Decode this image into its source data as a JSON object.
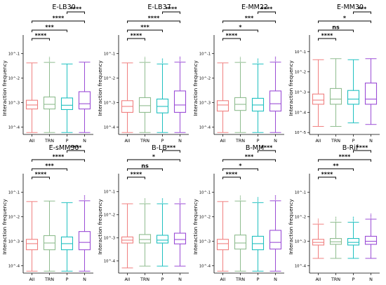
{
  "figure": {
    "groups": [
      "All",
      "TRN",
      "P",
      "N"
    ],
    "colors": [
      "#f08080",
      "#8fbc8f",
      "#20c0c0",
      "#9b4dd6"
    ]
  },
  "chart_data": [
    {
      "type": "box",
      "title": "E-LB30",
      "ylabel": "Interaction frequency",
      "yscale": "log",
      "yticks": [
        "10^-1",
        "10^-2",
        "10^-3",
        "10^-4"
      ],
      "ylim": [
        5e-05,
        0.3
      ],
      "categories": [
        "All",
        "TRN",
        "P",
        "N"
      ],
      "boxes": [
        {
          "whisker_low": 6e-05,
          "q1": 0.00055,
          "median": 0.0008,
          "q3": 0.00125,
          "whisker_high": 0.042,
          "outliers_above": false
        },
        {
          "whisker_low": 6e-05,
          "q1": 0.00055,
          "median": 0.00085,
          "q3": 0.0017,
          "whisker_high": 0.044,
          "outliers_above": true
        },
        {
          "whisker_low": 6e-05,
          "q1": 0.00052,
          "median": 0.00078,
          "q3": 0.00155,
          "whisker_high": 0.038,
          "outliers_above": false
        },
        {
          "whisker_low": 6e-05,
          "q1": 0.00055,
          "median": 0.0009,
          "q3": 0.0028,
          "whisker_high": 0.045,
          "outliers_above": false
        }
      ],
      "comparisons": [
        {
          "from": 0,
          "to": 1,
          "label": "****"
        },
        {
          "from": 0,
          "to": 2,
          "label": "***"
        },
        {
          "from": 0,
          "to": 3,
          "label": "****"
        },
        {
          "from": 2,
          "to": 3,
          "label": "****"
        }
      ]
    },
    {
      "type": "box",
      "title": "E-LB37",
      "ylabel": "Interaction frequency",
      "yscale": "log",
      "yticks": [
        "10^-1",
        "10^-2",
        "10^-3",
        "10^-4"
      ],
      "ylim": [
        5e-05,
        0.3
      ],
      "categories": [
        "All",
        "TRN",
        "P",
        "N"
      ],
      "boxes": [
        {
          "whisker_low": 6e-05,
          "q1": 0.0004,
          "median": 0.0007,
          "q3": 0.0012,
          "whisker_high": 0.042,
          "outliers_above": false
        },
        {
          "whisker_low": 6e-05,
          "q1": 0.0004,
          "median": 0.00075,
          "q3": 0.0016,
          "whisker_high": 0.044,
          "outliers_above": true
        },
        {
          "whisker_low": 6e-05,
          "q1": 0.00038,
          "median": 0.0007,
          "q3": 0.0014,
          "whisker_high": 0.038,
          "outliers_above": true
        },
        {
          "whisker_low": 6e-05,
          "q1": 0.0004,
          "median": 0.0008,
          "q3": 0.003,
          "whisker_high": 0.045,
          "outliers_above": true
        }
      ],
      "comparisons": [
        {
          "from": 0,
          "to": 1,
          "label": "****"
        },
        {
          "from": 0,
          "to": 2,
          "label": "***"
        },
        {
          "from": 0,
          "to": 3,
          "label": "****"
        },
        {
          "from": 2,
          "to": 3,
          "label": "****"
        }
      ]
    },
    {
      "type": "box",
      "title": "E-MM22",
      "ylabel": "Interaction frequency",
      "yscale": "log",
      "yticks": [
        "10^-1",
        "10^-2",
        "10^-3",
        "10^-4"
      ],
      "ylim": [
        5e-05,
        0.3
      ],
      "categories": [
        "All",
        "TRN",
        "P",
        "N"
      ],
      "boxes": [
        {
          "whisker_low": 6e-05,
          "q1": 0.00045,
          "median": 0.0008,
          "q3": 0.0012,
          "whisker_high": 0.042,
          "outliers_above": false
        },
        {
          "whisker_low": 6e-05,
          "q1": 0.00048,
          "median": 0.00085,
          "q3": 0.0016,
          "whisker_high": 0.044,
          "outliers_above": true
        },
        {
          "whisker_low": 6e-05,
          "q1": 0.00045,
          "median": 0.0008,
          "q3": 0.0015,
          "whisker_high": 0.038,
          "outliers_above": true
        },
        {
          "whisker_low": 6e-05,
          "q1": 0.00045,
          "median": 0.0009,
          "q3": 0.003,
          "whisker_high": 0.045,
          "outliers_above": true
        }
      ],
      "comparisons": [
        {
          "from": 0,
          "to": 1,
          "label": "****"
        },
        {
          "from": 0,
          "to": 2,
          "label": "*"
        },
        {
          "from": 0,
          "to": 3,
          "label": "***"
        },
        {
          "from": 2,
          "to": 3,
          "label": "****"
        }
      ]
    },
    {
      "type": "box",
      "title": "E-MM30",
      "ylabel": "Interaction frequency",
      "yscale": "log",
      "yticks": [
        "10^-1",
        "10^-2",
        "10^-3",
        "10^-4",
        "10^-5"
      ],
      "ylim": [
        8e-06,
        0.3
      ],
      "categories": [
        "All",
        "TRN",
        "P",
        "N"
      ],
      "boxes": [
        {
          "whisker_low": 2e-05,
          "q1": 0.00025,
          "median": 0.0004,
          "q3": 0.0008,
          "whisker_high": 0.04,
          "outliers_above": false
        },
        {
          "whisker_low": 2e-05,
          "q1": 0.00025,
          "median": 0.00045,
          "q3": 0.0015,
          "whisker_high": 0.045,
          "outliers_above": false
        },
        {
          "whisker_low": 3e-05,
          "q1": 0.00025,
          "median": 0.00045,
          "q3": 0.0012,
          "whisker_high": 0.04,
          "outliers_above": false
        },
        {
          "whisker_low": 2.5e-05,
          "q1": 0.00025,
          "median": 0.00045,
          "q3": 0.0028,
          "whisker_high": 0.045,
          "outliers_above": false
        }
      ],
      "comparisons": [
        {
          "from": 0,
          "to": 1,
          "label": "****"
        },
        {
          "from": 0,
          "to": 2,
          "label": "ns"
        },
        {
          "from": 0,
          "to": 3,
          "label": "*"
        },
        {
          "from": 2,
          "to": 3,
          "label": "***"
        }
      ]
    },
    {
      "type": "box",
      "title": "E-sMM30",
      "ylabel": "Interaction frequency",
      "yscale": "log",
      "yticks": [
        "10^-1",
        "10^-2",
        "10^-3",
        "10^-4"
      ],
      "ylim": [
        5e-05,
        0.3
      ],
      "categories": [
        "All",
        "TRN",
        "P",
        "N"
      ],
      "boxes": [
        {
          "whisker_low": 6e-05,
          "q1": 0.00045,
          "median": 0.0008,
          "q3": 0.0012,
          "whisker_high": 0.042,
          "outliers_above": false
        },
        {
          "whisker_low": 6e-05,
          "q1": 0.00045,
          "median": 0.00085,
          "q3": 0.0017,
          "whisker_high": 0.044,
          "outliers_above": false
        },
        {
          "whisker_low": 6e-05,
          "q1": 0.00045,
          "median": 0.0008,
          "q3": 0.0015,
          "whisker_high": 0.038,
          "outliers_above": false
        },
        {
          "whisker_low": 6e-05,
          "q1": 0.00045,
          "median": 0.0009,
          "q3": 0.0025,
          "whisker_high": 0.045,
          "outliers_above": true
        }
      ],
      "comparisons": [
        {
          "from": 0,
          "to": 1,
          "label": "****"
        },
        {
          "from": 0,
          "to": 2,
          "label": "***"
        },
        {
          "from": 0,
          "to": 3,
          "label": "****"
        },
        {
          "from": 2,
          "to": 3,
          "label": "****"
        }
      ]
    },
    {
      "type": "box",
      "title": "B-LB",
      "ylabel": "Interaction frequency",
      "yscale": "log",
      "yticks": [
        "10^-1",
        "10^-2",
        "10^-3",
        "10^-4"
      ],
      "ylim": [
        3e-05,
        0.3
      ],
      "categories": [
        "All",
        "TRN",
        "P",
        "N"
      ],
      "boxes": [
        {
          "whisker_low": 5e-05,
          "q1": 0.0006,
          "median": 0.0008,
          "q3": 0.0011,
          "whisker_high": 0.03,
          "outliers_above": false
        },
        {
          "whisker_low": 6e-05,
          "q1": 0.0006,
          "median": 0.00085,
          "q3": 0.0014,
          "whisker_high": 0.03,
          "outliers_above": true
        },
        {
          "whisker_low": 6e-05,
          "q1": 0.0006,
          "median": 0.0008,
          "q3": 0.0013,
          "whisker_high": 0.03,
          "outliers_above": true
        },
        {
          "whisker_low": 6e-05,
          "q1": 0.00055,
          "median": 0.00085,
          "q3": 0.0016,
          "whisker_high": 0.03,
          "outliers_above": true
        }
      ],
      "comparisons": [
        {
          "from": 0,
          "to": 1,
          "label": "****"
        },
        {
          "from": 0,
          "to": 2,
          "label": "ns"
        },
        {
          "from": 0,
          "to": 3,
          "label": "*"
        },
        {
          "from": 2,
          "to": 3,
          "label": "***"
        }
      ]
    },
    {
      "type": "box",
      "title": "B-MM",
      "ylabel": "Interaction frequency",
      "yscale": "log",
      "yticks": [
        "10^-1",
        "10^-2",
        "10^-3",
        "10^-4"
      ],
      "ylim": [
        5e-05,
        0.3
      ],
      "categories": [
        "All",
        "TRN",
        "P",
        "N"
      ],
      "boxes": [
        {
          "whisker_low": 6e-05,
          "q1": 0.00045,
          "median": 0.0008,
          "q3": 0.0012,
          "whisker_high": 0.042,
          "outliers_above": false
        },
        {
          "whisker_low": 6e-05,
          "q1": 0.00048,
          "median": 0.00085,
          "q3": 0.0018,
          "whisker_high": 0.044,
          "outliers_above": true
        },
        {
          "whisker_low": 6e-05,
          "q1": 0.00045,
          "median": 0.0008,
          "q3": 0.0016,
          "whisker_high": 0.038,
          "outliers_above": true
        },
        {
          "whisker_low": 6e-05,
          "q1": 0.00048,
          "median": 0.0009,
          "q3": 0.0028,
          "whisker_high": 0.045,
          "outliers_above": true
        }
      ],
      "comparisons": [
        {
          "from": 0,
          "to": 1,
          "label": "****"
        },
        {
          "from": 0,
          "to": 2,
          "label": "*"
        },
        {
          "from": 0,
          "to": 3,
          "label": "***"
        },
        {
          "from": 2,
          "to": 3,
          "label": "****"
        }
      ]
    },
    {
      "type": "box",
      "title": "B-Rif",
      "ylabel": "Interaction frequency",
      "yscale": "log",
      "yticks": [
        "10^-1",
        "10^-2",
        "10^-3",
        "10^-4"
      ],
      "ylim": [
        5e-05,
        0.3
      ],
      "categories": [
        "All",
        "TRN",
        "P",
        "N"
      ],
      "boxes": [
        {
          "whisker_low": 0.0002,
          "q1": 0.0007,
          "median": 0.0009,
          "q3": 0.0012,
          "whisker_high": 0.005,
          "outliers_above": true
        },
        {
          "whisker_low": 0.0002,
          "q1": 0.00075,
          "median": 0.00095,
          "q3": 0.0013,
          "whisker_high": 0.006,
          "outliers_above": true
        },
        {
          "whisker_low": 0.0002,
          "q1": 0.0007,
          "median": 0.0009,
          "q3": 0.0013,
          "whisker_high": 0.006,
          "outliers_above": true
        },
        {
          "whisker_low": 0.0002,
          "q1": 0.00075,
          "median": 0.001,
          "q3": 0.0016,
          "whisker_high": 0.008,
          "outliers_above": true
        }
      ],
      "comparisons": [
        {
          "from": 0,
          "to": 1,
          "label": "****"
        },
        {
          "from": 0,
          "to": 2,
          "label": "**"
        },
        {
          "from": 0,
          "to": 3,
          "label": "****"
        },
        {
          "from": 2,
          "to": 3,
          "label": "****"
        }
      ]
    }
  ]
}
